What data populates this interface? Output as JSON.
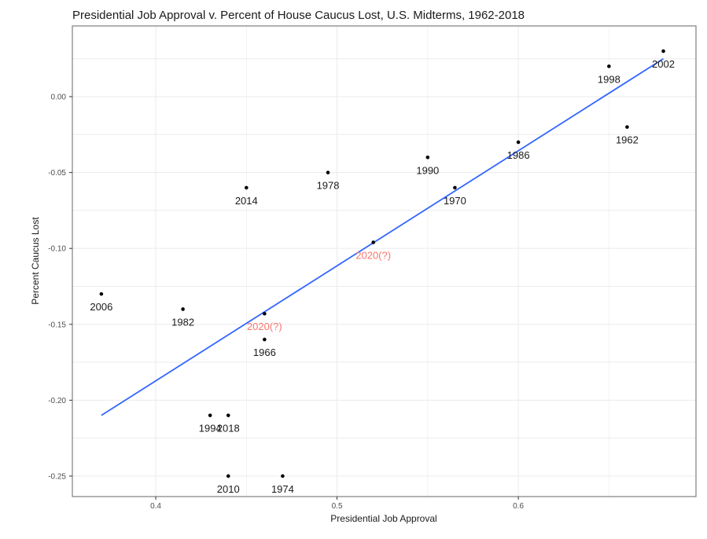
{
  "chart_data": {
    "type": "scatter",
    "title": "Presidential Job Approval v. Percent of House Caucus Lost, U.S. Midterms, 1962-2018",
    "xlabel": "Presidential Job Approval",
    "ylabel": "Percent Caucus Lost",
    "xlim": [
      0.354,
      0.698
    ],
    "ylim": [
      -0.2635,
      0.0466
    ],
    "xticks": [
      0.4,
      0.5,
      0.6
    ],
    "xtick_labels": [
      "0.4",
      "0.5",
      "0.6"
    ],
    "yticks": [
      0.0,
      -0.05,
      -0.1,
      -0.15,
      -0.2,
      -0.25
    ],
    "ytick_labels": [
      "0.00",
      "-0.05",
      "-0.10",
      "-0.15",
      "-0.20",
      "-0.25"
    ],
    "grid": true,
    "points": [
      {
        "label": "2006",
        "x": 0.37,
        "y": -0.13,
        "highlight": false
      },
      {
        "label": "1982",
        "x": 0.415,
        "y": -0.14,
        "highlight": false
      },
      {
        "label": "1994",
        "x": 0.43,
        "y": -0.21,
        "highlight": false
      },
      {
        "label": "2018",
        "x": 0.44,
        "y": -0.21,
        "highlight": false
      },
      {
        "label": "2010",
        "x": 0.44,
        "y": -0.25,
        "highlight": false
      },
      {
        "label": "1974",
        "x": 0.47,
        "y": -0.25,
        "highlight": false
      },
      {
        "label": "2014",
        "x": 0.45,
        "y": -0.06,
        "highlight": false
      },
      {
        "label": "1966",
        "x": 0.46,
        "y": -0.16,
        "highlight": false
      },
      {
        "label": "2020(?)",
        "x": 0.46,
        "y": -0.143,
        "highlight": true
      },
      {
        "label": "1978",
        "x": 0.495,
        "y": -0.05,
        "highlight": false
      },
      {
        "label": "2020(?)",
        "x": 0.52,
        "y": -0.096,
        "highlight": true
      },
      {
        "label": "1990",
        "x": 0.55,
        "y": -0.04,
        "highlight": false
      },
      {
        "label": "1970",
        "x": 0.565,
        "y": -0.06,
        "highlight": false
      },
      {
        "label": "1986",
        "x": 0.6,
        "y": -0.03,
        "highlight": false
      },
      {
        "label": "1998",
        "x": 0.65,
        "y": 0.02,
        "highlight": false
      },
      {
        "label": "1962",
        "x": 0.66,
        "y": -0.02,
        "highlight": false
      },
      {
        "label": "2002",
        "x": 0.68,
        "y": 0.03,
        "highlight": false
      }
    ],
    "fit_line": {
      "x": [
        0.37,
        0.68
      ],
      "y": [
        -0.21,
        0.025
      ]
    },
    "colors": {
      "point": "#000000",
      "highlight_label": "#f8766d",
      "fit": "#3366ff",
      "grid": "#ebebeb",
      "border": "#7f7f7f"
    }
  }
}
